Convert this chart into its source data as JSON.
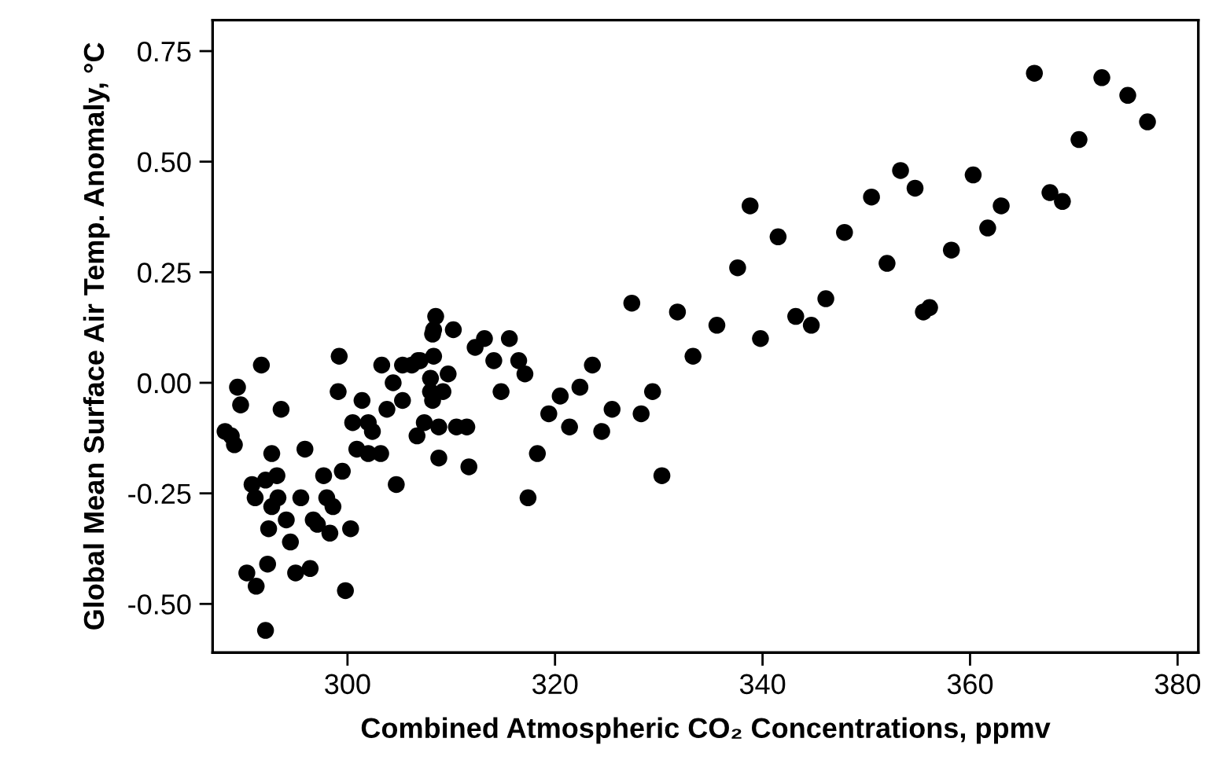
{
  "chart_data": {
    "type": "scatter",
    "xlabel": "Combined Atmospheric CO₂ Concentrations, ppmv",
    "ylabel": "Global Mean Surface Air Temp. Anomaly, °C",
    "xlim": [
      287.0,
      382.0
    ],
    "ylim": [
      -0.61,
      0.82
    ],
    "xticks": [
      300,
      320,
      340,
      360,
      380
    ],
    "yticks": [
      {
        "value": -0.5,
        "label": "-0.50"
      },
      {
        "value": -0.25,
        "label": "-0.25"
      },
      {
        "value": 0,
        "label": "0.00"
      },
      {
        "value": 0.25,
        "label": "0.25"
      },
      {
        "value": 0.5,
        "label": "0.50"
      },
      {
        "value": 0.75,
        "label": "0.75"
      }
    ],
    "grid": false,
    "marker": "circle",
    "series": [
      {
        "color": "#000000",
        "x": [
          291.7,
          299.2,
          289.4,
          289.7,
          293.6,
          299.1,
          301.4,
          303.3,
          304.4,
          305.3,
          306.8,
          305.3,
          303.8,
          288.2,
          288.8,
          289.1,
          292.7,
          295.9,
          300.5,
          302.0,
          302.4,
          306.7,
          300.9,
          302.0,
          303.2,
          299.5,
          297.7,
          293.2,
          292.1,
          290.8,
          291.1,
          304.7,
          293.3,
          292.7,
          295.5,
          298.0,
          298.6,
          294.1,
          296.7,
          297.1,
          298.3,
          292.4,
          300.3,
          294.5,
          292.3,
          290.3,
          291.2,
          295.0,
          296.4,
          299.8,
          292.1,
          308.5,
          308.3,
          308.2,
          310.2,
          313.2,
          312.3,
          315.6,
          307.0,
          308.3,
          306.2,
          309.7,
          314.1,
          316.5,
          317.1,
          323.6,
          308.0,
          308.0,
          309.2,
          308.2,
          314.8,
          320.5,
          322.4,
          325.5,
          307.4,
          308.8,
          310.5,
          311.5,
          319.4,
          321.4,
          324.5,
          318.3,
          308.8,
          311.7,
          317.4,
          328.3,
          329.4,
          330.3,
          327.4,
          331.8,
          333.3,
          335.6,
          339.8,
          337.6,
          338.8,
          341.5,
          343.2,
          344.7,
          346.1,
          347.9,
          350.5,
          352.0,
          353.3,
          354.7,
          355.5,
          356.1,
          358.2,
          360.3,
          361.7,
          363.0,
          366.2,
          367.7,
          368.9,
          370.5,
          372.7,
          375.2,
          377.1
        ],
        "values": [
          0.04,
          0.06,
          -0.01,
          -0.05,
          -0.06,
          -0.02,
          -0.04,
          0.04,
          0.0,
          0.04,
          0.05,
          -0.04,
          -0.06,
          -0.11,
          -0.12,
          -0.14,
          -0.16,
          -0.15,
          -0.09,
          -0.09,
          -0.11,
          -0.12,
          -0.15,
          -0.16,
          -0.16,
          -0.2,
          -0.21,
          -0.21,
          -0.22,
          -0.23,
          -0.26,
          -0.23,
          -0.26,
          -0.28,
          -0.26,
          -0.26,
          -0.28,
          -0.31,
          -0.31,
          -0.32,
          -0.34,
          -0.33,
          -0.33,
          -0.36,
          -0.41,
          -0.43,
          -0.46,
          -0.43,
          -0.42,
          -0.47,
          -0.56,
          0.15,
          0.12,
          0.11,
          0.12,
          0.1,
          0.08,
          0.1,
          0.05,
          0.06,
          0.04,
          0.02,
          0.05,
          0.05,
          0.02,
          0.04,
          0.01,
          -0.02,
          -0.02,
          -0.04,
          -0.02,
          -0.03,
          -0.01,
          -0.06,
          -0.09,
          -0.1,
          -0.1,
          -0.1,
          -0.07,
          -0.1,
          -0.11,
          -0.16,
          -0.17,
          -0.19,
          -0.26,
          -0.07,
          -0.02,
          -0.21,
          0.18,
          0.16,
          0.06,
          0.13,
          0.1,
          0.26,
          0.4,
          0.33,
          0.15,
          0.13,
          0.19,
          0.34,
          0.42,
          0.27,
          0.48,
          0.44,
          0.16,
          0.17,
          0.3,
          0.47,
          0.35,
          0.4,
          0.7,
          0.43,
          0.41,
          0.55,
          0.69,
          0.65,
          0.59
        ]
      }
    ]
  }
}
